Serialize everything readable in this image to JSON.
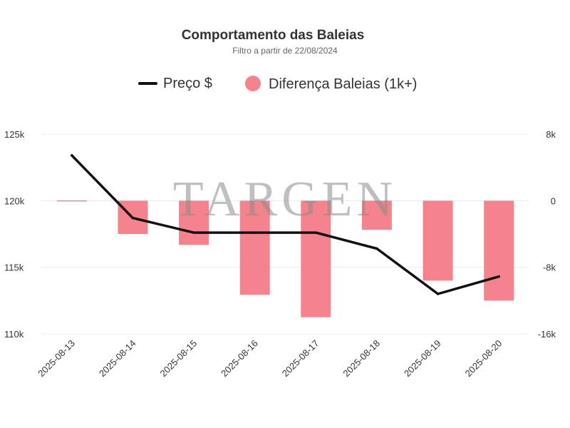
{
  "chart_data": {
    "type": "bar+line",
    "title": "Comportamento das Baleias",
    "subtitle": "Filtro a partir de 22/08/2024",
    "categories": [
      "2025-08-13",
      "2025-08-14",
      "2025-08-15",
      "2025-08-16",
      "2025-08-17",
      "2025-08-18",
      "2025-08-19",
      "2025-08-20"
    ],
    "series": [
      {
        "name": "Preço $",
        "kind": "line",
        "axis": "left",
        "color": "#111111",
        "values": [
          123400,
          118700,
          117600,
          117600,
          117600,
          116400,
          113000,
          114300
        ]
      },
      {
        "name": "Diferença Baleias (1k+)",
        "kind": "bar",
        "axis": "right",
        "color": "#f4838d",
        "values": [
          40,
          -4000,
          -5300,
          -11300,
          -14000,
          -3500,
          -9600,
          -12000
        ]
      }
    ],
    "y_left": {
      "min": 110000,
      "max": 125000,
      "ticks": [
        110000,
        115000,
        120000,
        125000
      ],
      "tick_labels": [
        "110k",
        "115k",
        "120k",
        "125k"
      ]
    },
    "y_right": {
      "min": -16000,
      "max": 8000,
      "ticks": [
        -16000,
        -8000,
        0,
        8000
      ],
      "tick_labels": [
        "-16k",
        "-8k",
        "0",
        "8k"
      ]
    },
    "grid": true,
    "legend_position": "top-center",
    "watermark": "TARGEN"
  }
}
